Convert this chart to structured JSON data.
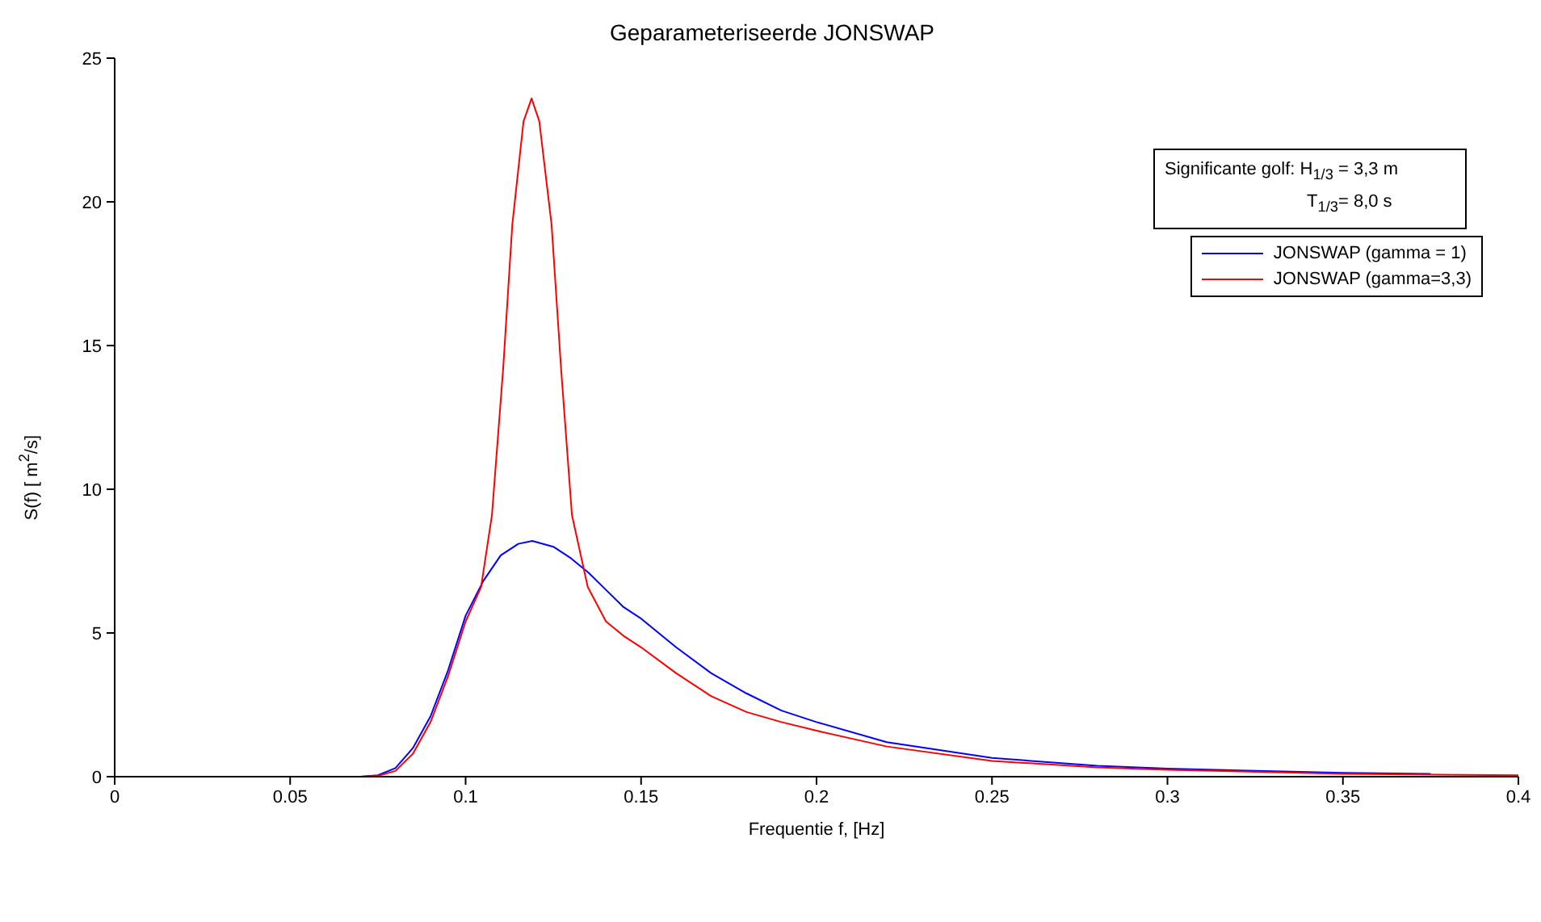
{
  "chart_data": {
    "type": "line",
    "title": "Geparameteriseerde JONSWAP",
    "xlabel": "Frequentie f, [Hz]",
    "ylabel": "S(f) [ m$^{2}$/s]",
    "annotations": [
      "Significante golf: H$_{1/3}$ = 3,3 m",
      "T$_{1/3}$= 8,0 s"
    ],
    "xlim": [
      0,
      0.4
    ],
    "xticks": [
      0,
      0.05,
      0.1,
      0.15,
      0.2,
      0.25,
      0.3,
      0.35,
      0.4
    ],
    "ylim": [
      0,
      25
    ],
    "yticks": [
      0,
      5,
      10,
      15,
      20,
      25
    ],
    "grid": false,
    "legend": "top right",
    "marker": "none",
    "line_style": "solid",
    "series": [
      {
        "name": "JONSWAP (gamma = 1)",
        "color": "#0000ff",
        "x": [
          0,
          0.07,
          0.075,
          0.08,
          0.085,
          0.09,
          0.095,
          0.1,
          0.105,
          0.11,
          0.115,
          0.119,
          0.125,
          0.13,
          0.135,
          0.14,
          0.145,
          0.15,
          0.16,
          0.17,
          0.18,
          0.19,
          0.2,
          0.22,
          0.25,
          0.28,
          0.3,
          0.35,
          0.375
        ],
        "values": [
          0,
          0,
          0.05,
          0.3,
          1.0,
          2.1,
          3.7,
          5.6,
          6.8,
          7.7,
          8.1,
          8.2,
          8.0,
          7.6,
          7.1,
          6.5,
          5.9,
          5.5,
          4.5,
          3.6,
          2.9,
          2.3,
          1.9,
          1.2,
          0.65,
          0.38,
          0.28,
          0.13,
          0.1
        ]
      },
      {
        "name": "JONSWAP (gamma=3,3)",
        "color": "#ff0000",
        "x": [
          0,
          0.07,
          0.075,
          0.08,
          0.085,
          0.09,
          0.095,
          0.1,
          0.1044,
          0.1075,
          0.1107,
          0.1133,
          0.1165,
          0.1188,
          0.121,
          0.1245,
          0.1272,
          0.1303,
          0.1348,
          0.14,
          0.145,
          0.15,
          0.16,
          0.17,
          0.18,
          0.19,
          0.2,
          0.22,
          0.25,
          0.28,
          0.3,
          0.35,
          0.4
        ],
        "values": [
          0,
          0,
          0.03,
          0.2,
          0.8,
          1.9,
          3.5,
          5.4,
          6.6,
          9.1,
          14.2,
          19.2,
          22.8,
          23.6,
          22.8,
          19.2,
          14.2,
          9.1,
          6.6,
          5.4,
          4.9,
          4.5,
          3.6,
          2.8,
          2.25,
          1.9,
          1.6,
          1.05,
          0.55,
          0.32,
          0.24,
          0.1,
          0.05
        ]
      }
    ]
  }
}
